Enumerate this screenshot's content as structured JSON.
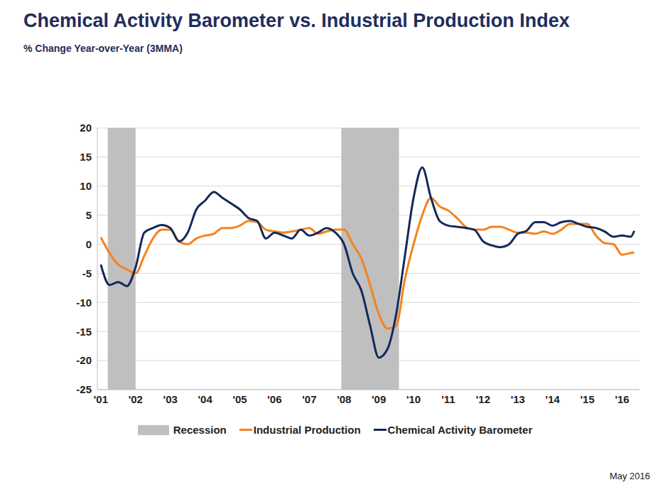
{
  "chart_data": {
    "type": "line",
    "title": "Chemical Activity Barometer vs. Industrial Production Index",
    "subtitle": "% Change Year-over-Year (3MMA)",
    "x": [
      2001.0,
      2001.25,
      2001.5,
      2001.75,
      2002.0,
      2002.25,
      2002.5,
      2002.75,
      2003.0,
      2003.25,
      2003.5,
      2003.75,
      2004.0,
      2004.25,
      2004.5,
      2004.75,
      2005.0,
      2005.25,
      2005.5,
      2005.75,
      2006.0,
      2006.25,
      2006.5,
      2006.75,
      2007.0,
      2007.25,
      2007.5,
      2007.75,
      2008.0,
      2008.25,
      2008.5,
      2008.75,
      2009.0,
      2009.25,
      2009.5,
      2009.75,
      2010.0,
      2010.25,
      2010.5,
      2010.75,
      2011.0,
      2011.25,
      2011.5,
      2011.75,
      2012.0,
      2012.25,
      2012.5,
      2012.75,
      2013.0,
      2013.25,
      2013.5,
      2013.75,
      2014.0,
      2014.25,
      2014.5,
      2014.75,
      2015.0,
      2015.25,
      2015.5,
      2015.75,
      2016.0,
      2016.25,
      2016.35
    ],
    "series": [
      {
        "name": "Industrial Production",
        "color": "#f5821f",
        "values": [
          1.2,
          -1.5,
          -3.5,
          -4.3,
          -5,
          -2,
          1,
          2.5,
          2.5,
          0.5,
          0,
          1,
          1.5,
          1.8,
          2.8,
          2.8,
          3.2,
          4,
          3.8,
          2.5,
          2.2,
          2,
          2.2,
          2.5,
          2.8,
          1.8,
          2.2,
          2.5,
          2.5,
          0,
          -2.5,
          -7,
          -12,
          -14.5,
          -14,
          -6,
          0,
          5,
          8,
          6.5,
          5.8,
          4.5,
          3,
          2.5,
          2.5,
          3,
          3,
          2.5,
          2,
          2,
          1.8,
          2.2,
          1.8,
          2.5,
          3.5,
          3.5,
          3.5,
          1.5,
          0.2,
          0,
          -1.8,
          -1.5,
          -1.4
        ]
      },
      {
        "name": "Chemical Activity Barometer",
        "color": "#14295a",
        "values": [
          -3.5,
          -7,
          -6.5,
          -7.2,
          -4,
          2,
          2.8,
          3.3,
          2.8,
          0.5,
          2,
          6,
          7.5,
          9,
          8,
          7,
          6,
          4.5,
          4,
          1,
          2,
          1.5,
          1,
          2.5,
          1.5,
          2,
          2.8,
          2,
          0,
          -5,
          -8,
          -14,
          -19.5,
          -18,
          -12,
          -2,
          8,
          13.2,
          8,
          4,
          3.2,
          3,
          2.8,
          2.5,
          0.5,
          -0.2,
          -0.5,
          0,
          1.8,
          2.3,
          3.8,
          3.8,
          3.2,
          3.8,
          4,
          3.5,
          3,
          2.8,
          2.2,
          1.3,
          1.5,
          1.3,
          2.3
        ]
      }
    ],
    "recessions": {
      "name": "Recession",
      "color": "#bfbfbf",
      "ranges": [
        [
          2001.2,
          2002.0
        ],
        [
          2007.92,
          2009.58
        ]
      ]
    },
    "xlim": [
      2000.9,
      2016.5
    ],
    "xticks": [
      {
        "value": 2001,
        "label": "'01"
      },
      {
        "value": 2002,
        "label": "'02"
      },
      {
        "value": 2003,
        "label": "'03"
      },
      {
        "value": 2004,
        "label": "'04"
      },
      {
        "value": 2005,
        "label": "'05"
      },
      {
        "value": 2006,
        "label": "'06"
      },
      {
        "value": 2007,
        "label": "'07"
      },
      {
        "value": 2008,
        "label": "'08"
      },
      {
        "value": 2009,
        "label": "'09"
      },
      {
        "value": 2010,
        "label": "'10"
      },
      {
        "value": 2011,
        "label": "'11"
      },
      {
        "value": 2012,
        "label": "'12"
      },
      {
        "value": 2013,
        "label": "'13"
      },
      {
        "value": 2014,
        "label": "'14"
      },
      {
        "value": 2015,
        "label": "'15"
      },
      {
        "value": 2016,
        "label": "'16"
      }
    ],
    "ylim": [
      -25,
      20
    ],
    "yticks": [
      -25,
      -20,
      -15,
      -10,
      -5,
      0,
      5,
      10,
      15,
      20
    ],
    "grid": true,
    "legend": "bottom",
    "annotations": [
      "May 2016"
    ]
  }
}
